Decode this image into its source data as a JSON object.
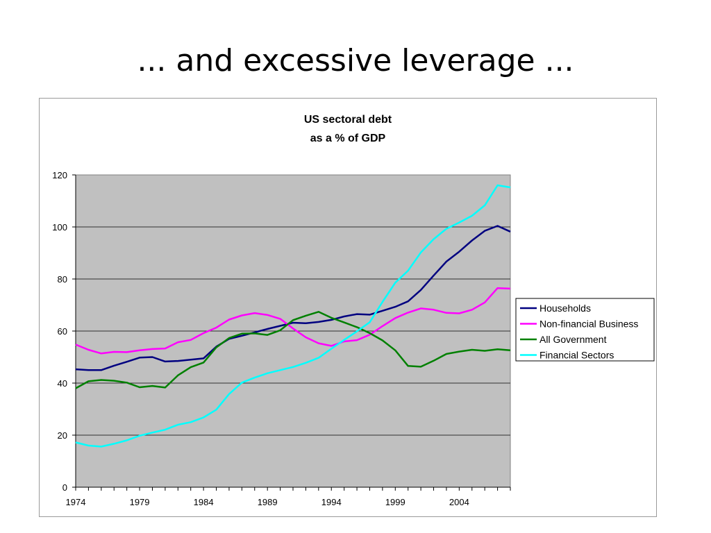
{
  "slide": {
    "title": "... and excessive leverage ..."
  },
  "colors": {
    "Households": "#000080",
    "Non-financial Business": "#ff00ff",
    "All Government": "#008000",
    "Financial Sectors": "#00ffff",
    "plot_background": "#c0c0c0"
  },
  "chart_data": {
    "type": "line",
    "title": "US sectoral debt",
    "subtitle": "as a % of GDP",
    "xlabel": "",
    "ylabel": "",
    "ylim": [
      0,
      120
    ],
    "yticks": [
      "0",
      "20",
      "40",
      "60",
      "80",
      "100",
      "120"
    ],
    "xlim": [
      1974,
      2008
    ],
    "xticks": [
      "1974",
      "1979",
      "1984",
      "1989",
      "1994",
      "1999",
      "2004"
    ],
    "grid": "horizontal",
    "legend_position": "right",
    "x": [
      1974,
      1975,
      1976,
      1977,
      1978,
      1979,
      1980,
      1981,
      1982,
      1983,
      1984,
      1985,
      1986,
      1987,
      1988,
      1989,
      1990,
      1991,
      1992,
      1993,
      1994,
      1995,
      1996,
      1997,
      1998,
      1999,
      2000,
      2001,
      2002,
      2003,
      2004,
      2005,
      2006,
      2007,
      2008
    ],
    "series": [
      {
        "name": "Households",
        "values": [
          45.3,
          45.0,
          45.0,
          46.7,
          48.2,
          49.8,
          50.0,
          48.3,
          48.5,
          49.0,
          49.5,
          54.0,
          57.0,
          58.2,
          59.5,
          60.8,
          62.0,
          63.2,
          63.0,
          63.5,
          64.3,
          65.6,
          66.5,
          66.3,
          67.8,
          69.3,
          71.4,
          75.8,
          81.3,
          86.7,
          90.5,
          94.8,
          98.5,
          100.4,
          98.2
        ]
      },
      {
        "name": "Non-financial Business",
        "values": [
          54.8,
          52.8,
          51.4,
          52.0,
          51.9,
          52.6,
          53.1,
          53.3,
          55.7,
          56.6,
          59.2,
          61.3,
          64.4,
          66.0,
          66.9,
          66.2,
          64.7,
          61.0,
          57.6,
          55.3,
          54.3,
          56.0,
          56.5,
          58.6,
          61.9,
          65.0,
          67.1,
          68.7,
          68.2,
          67.0,
          66.8,
          68.2,
          71.0,
          76.5,
          76.3
        ]
      },
      {
        "name": "All Government",
        "values": [
          38.0,
          40.7,
          41.2,
          40.9,
          40.2,
          38.4,
          38.9,
          38.3,
          43.0,
          46.1,
          47.9,
          53.7,
          57.3,
          59.0,
          59.1,
          58.5,
          60.3,
          64.2,
          65.9,
          67.4,
          65.1,
          63.3,
          61.5,
          59.2,
          56.4,
          52.6,
          46.6,
          46.3,
          48.6,
          51.2,
          52.1,
          52.8,
          52.4,
          53.0,
          52.6
        ]
      },
      {
        "name": "Financial Sectors",
        "values": [
          17.2,
          16.0,
          15.6,
          16.7,
          18.0,
          19.8,
          21.0,
          22.1,
          24.0,
          25.0,
          26.8,
          29.8,
          35.8,
          40.2,
          42.1,
          43.8,
          45.0,
          46.2,
          47.8,
          49.7,
          53.2,
          56.6,
          59.9,
          63.4,
          71.2,
          78.6,
          83.2,
          90.2,
          95.3,
          99.3,
          101.7,
          104.3,
          108.3,
          116.0,
          115.2
        ]
      }
    ]
  }
}
